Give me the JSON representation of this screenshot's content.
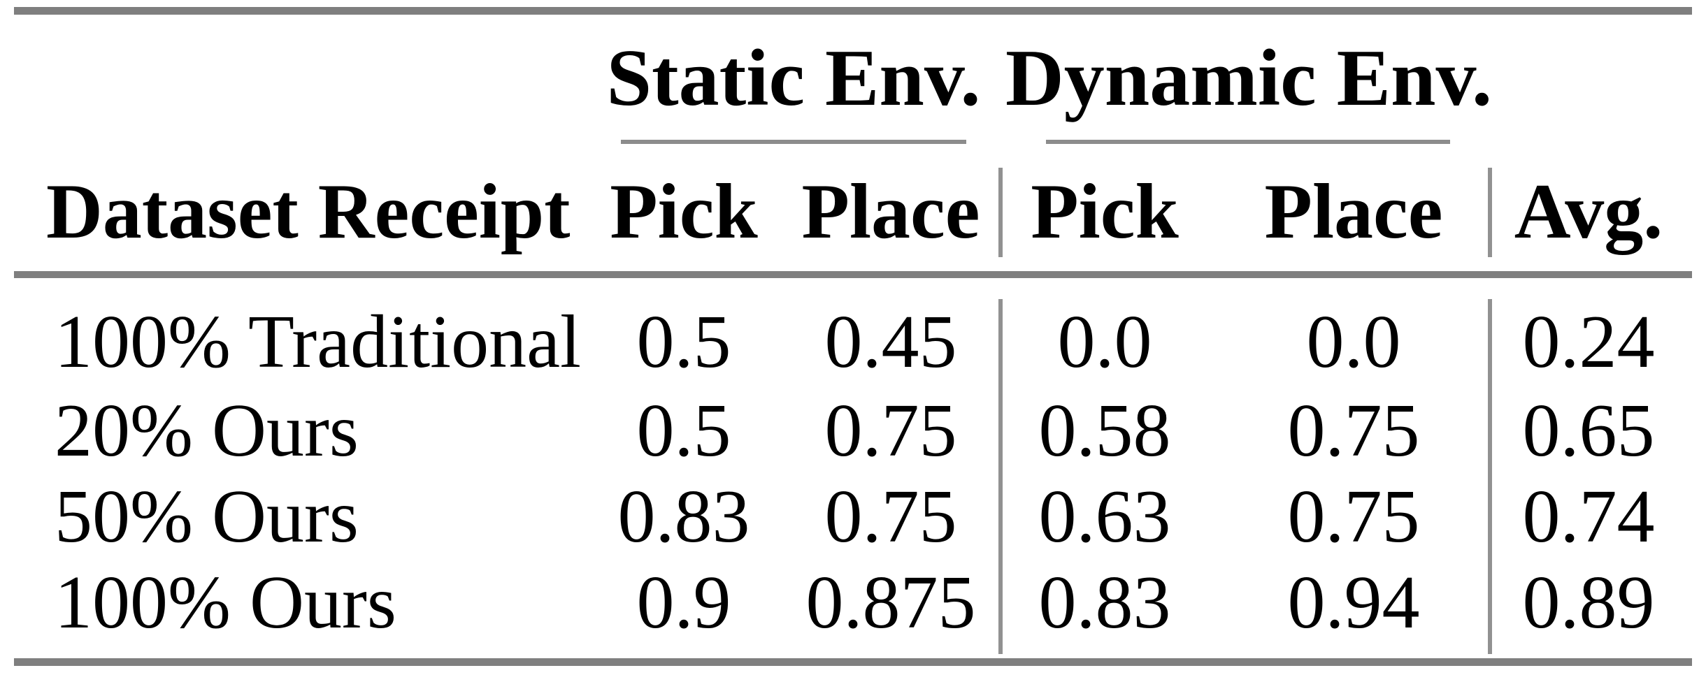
{
  "table": {
    "group_headers": {
      "static": "Static Env.",
      "dynamic": "Dynamic Env."
    },
    "columns": {
      "label": "Dataset Receipt",
      "s_pick": "Pick",
      "s_place": "Place",
      "d_pick": "Pick",
      "d_place": "Place",
      "avg": "Avg."
    },
    "rows": [
      {
        "label": "100% Traditional",
        "s_pick": "0.5",
        "s_place": "0.45",
        "d_pick": "0.0",
        "d_place": "0.0",
        "avg": "0.24"
      },
      {
        "label": "20% Ours",
        "s_pick": "0.5",
        "s_place": "0.75",
        "d_pick": "0.58",
        "d_place": "0.75",
        "avg": "0.65"
      },
      {
        "label": "50% Ours",
        "s_pick": "0.83",
        "s_place": "0.75",
        "d_pick": "0.63",
        "d_place": "0.75",
        "avg": "0.74"
      },
      {
        "label": "100% Ours",
        "s_pick": "0.9",
        "s_place": "0.875",
        "d_pick": "0.83",
        "d_place": "0.94",
        "avg": "0.89"
      }
    ]
  },
  "colors": {
    "background": "#ffffff",
    "text": "#000000",
    "rule_heavy": "#7f7f7f",
    "rule_cmid": "#8c8c8c",
    "rule_vertical": "#919191"
  },
  "chart_data": {
    "type": "table",
    "title": "",
    "column_groups": [
      {
        "label": "",
        "span": 1
      },
      {
        "label": "Static Env.",
        "span": 2
      },
      {
        "label": "Dynamic Env.",
        "span": 2
      },
      {
        "label": "",
        "span": 1
      }
    ],
    "columns": [
      "Dataset Receipt",
      "Pick",
      "Place",
      "Pick",
      "Place",
      "Avg."
    ],
    "rows": [
      [
        "100% Traditional",
        0.5,
        0.45,
        0.0,
        0.0,
        0.24
      ],
      [
        "20% Ours",
        0.5,
        0.75,
        0.58,
        0.75,
        0.65
      ],
      [
        "50% Ours",
        0.83,
        0.75,
        0.63,
        0.75,
        0.74
      ],
      [
        "100% Ours",
        0.9,
        0.875,
        0.83,
        0.94,
        0.89
      ]
    ]
  }
}
